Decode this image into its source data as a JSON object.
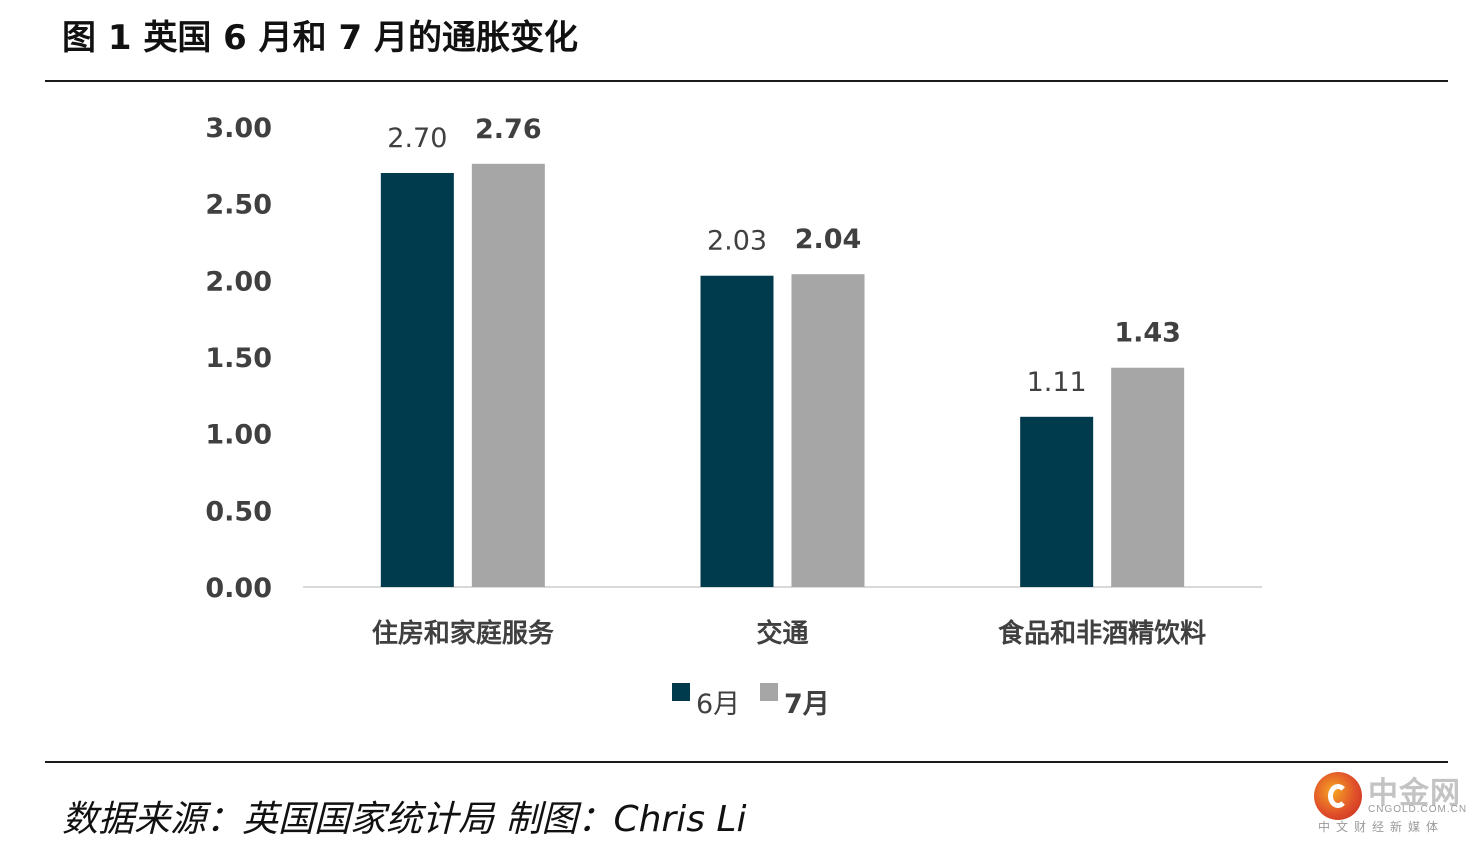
{
  "title": "图 1  英国 6 月和 7 月的通胀变化",
  "source": "数据来源：英国国家统计局  制图：Chris Li",
  "logo": {
    "name": "中金网",
    "domain": "CNGOLD.COM.CN",
    "tagline": "中文财经新媒体"
  },
  "colors": {
    "june": "#003a4d",
    "july": "#a6a6a6",
    "axis_line": "#d9d9d9",
    "tick_text": "#404040",
    "label_text": "#404040"
  },
  "chart_data": {
    "type": "bar",
    "categories": [
      "住房和家庭服务",
      "交通",
      "食品和非酒精饮料"
    ],
    "series": [
      {
        "name": "6月",
        "values": [
          2.7,
          2.03,
          1.11
        ],
        "labels": [
          "2.70",
          "2.03",
          "1.11"
        ]
      },
      {
        "name": "7月",
        "values": [
          2.76,
          2.04,
          1.43
        ],
        "labels": [
          "2.76",
          "2.04",
          "1.43"
        ]
      }
    ],
    "yticks": [
      "0.00",
      "0.50",
      "1.00",
      "1.50",
      "2.00",
      "2.50",
      "3.00"
    ],
    "ylim": [
      0,
      3
    ],
    "legend": "bottom",
    "grid": false
  }
}
